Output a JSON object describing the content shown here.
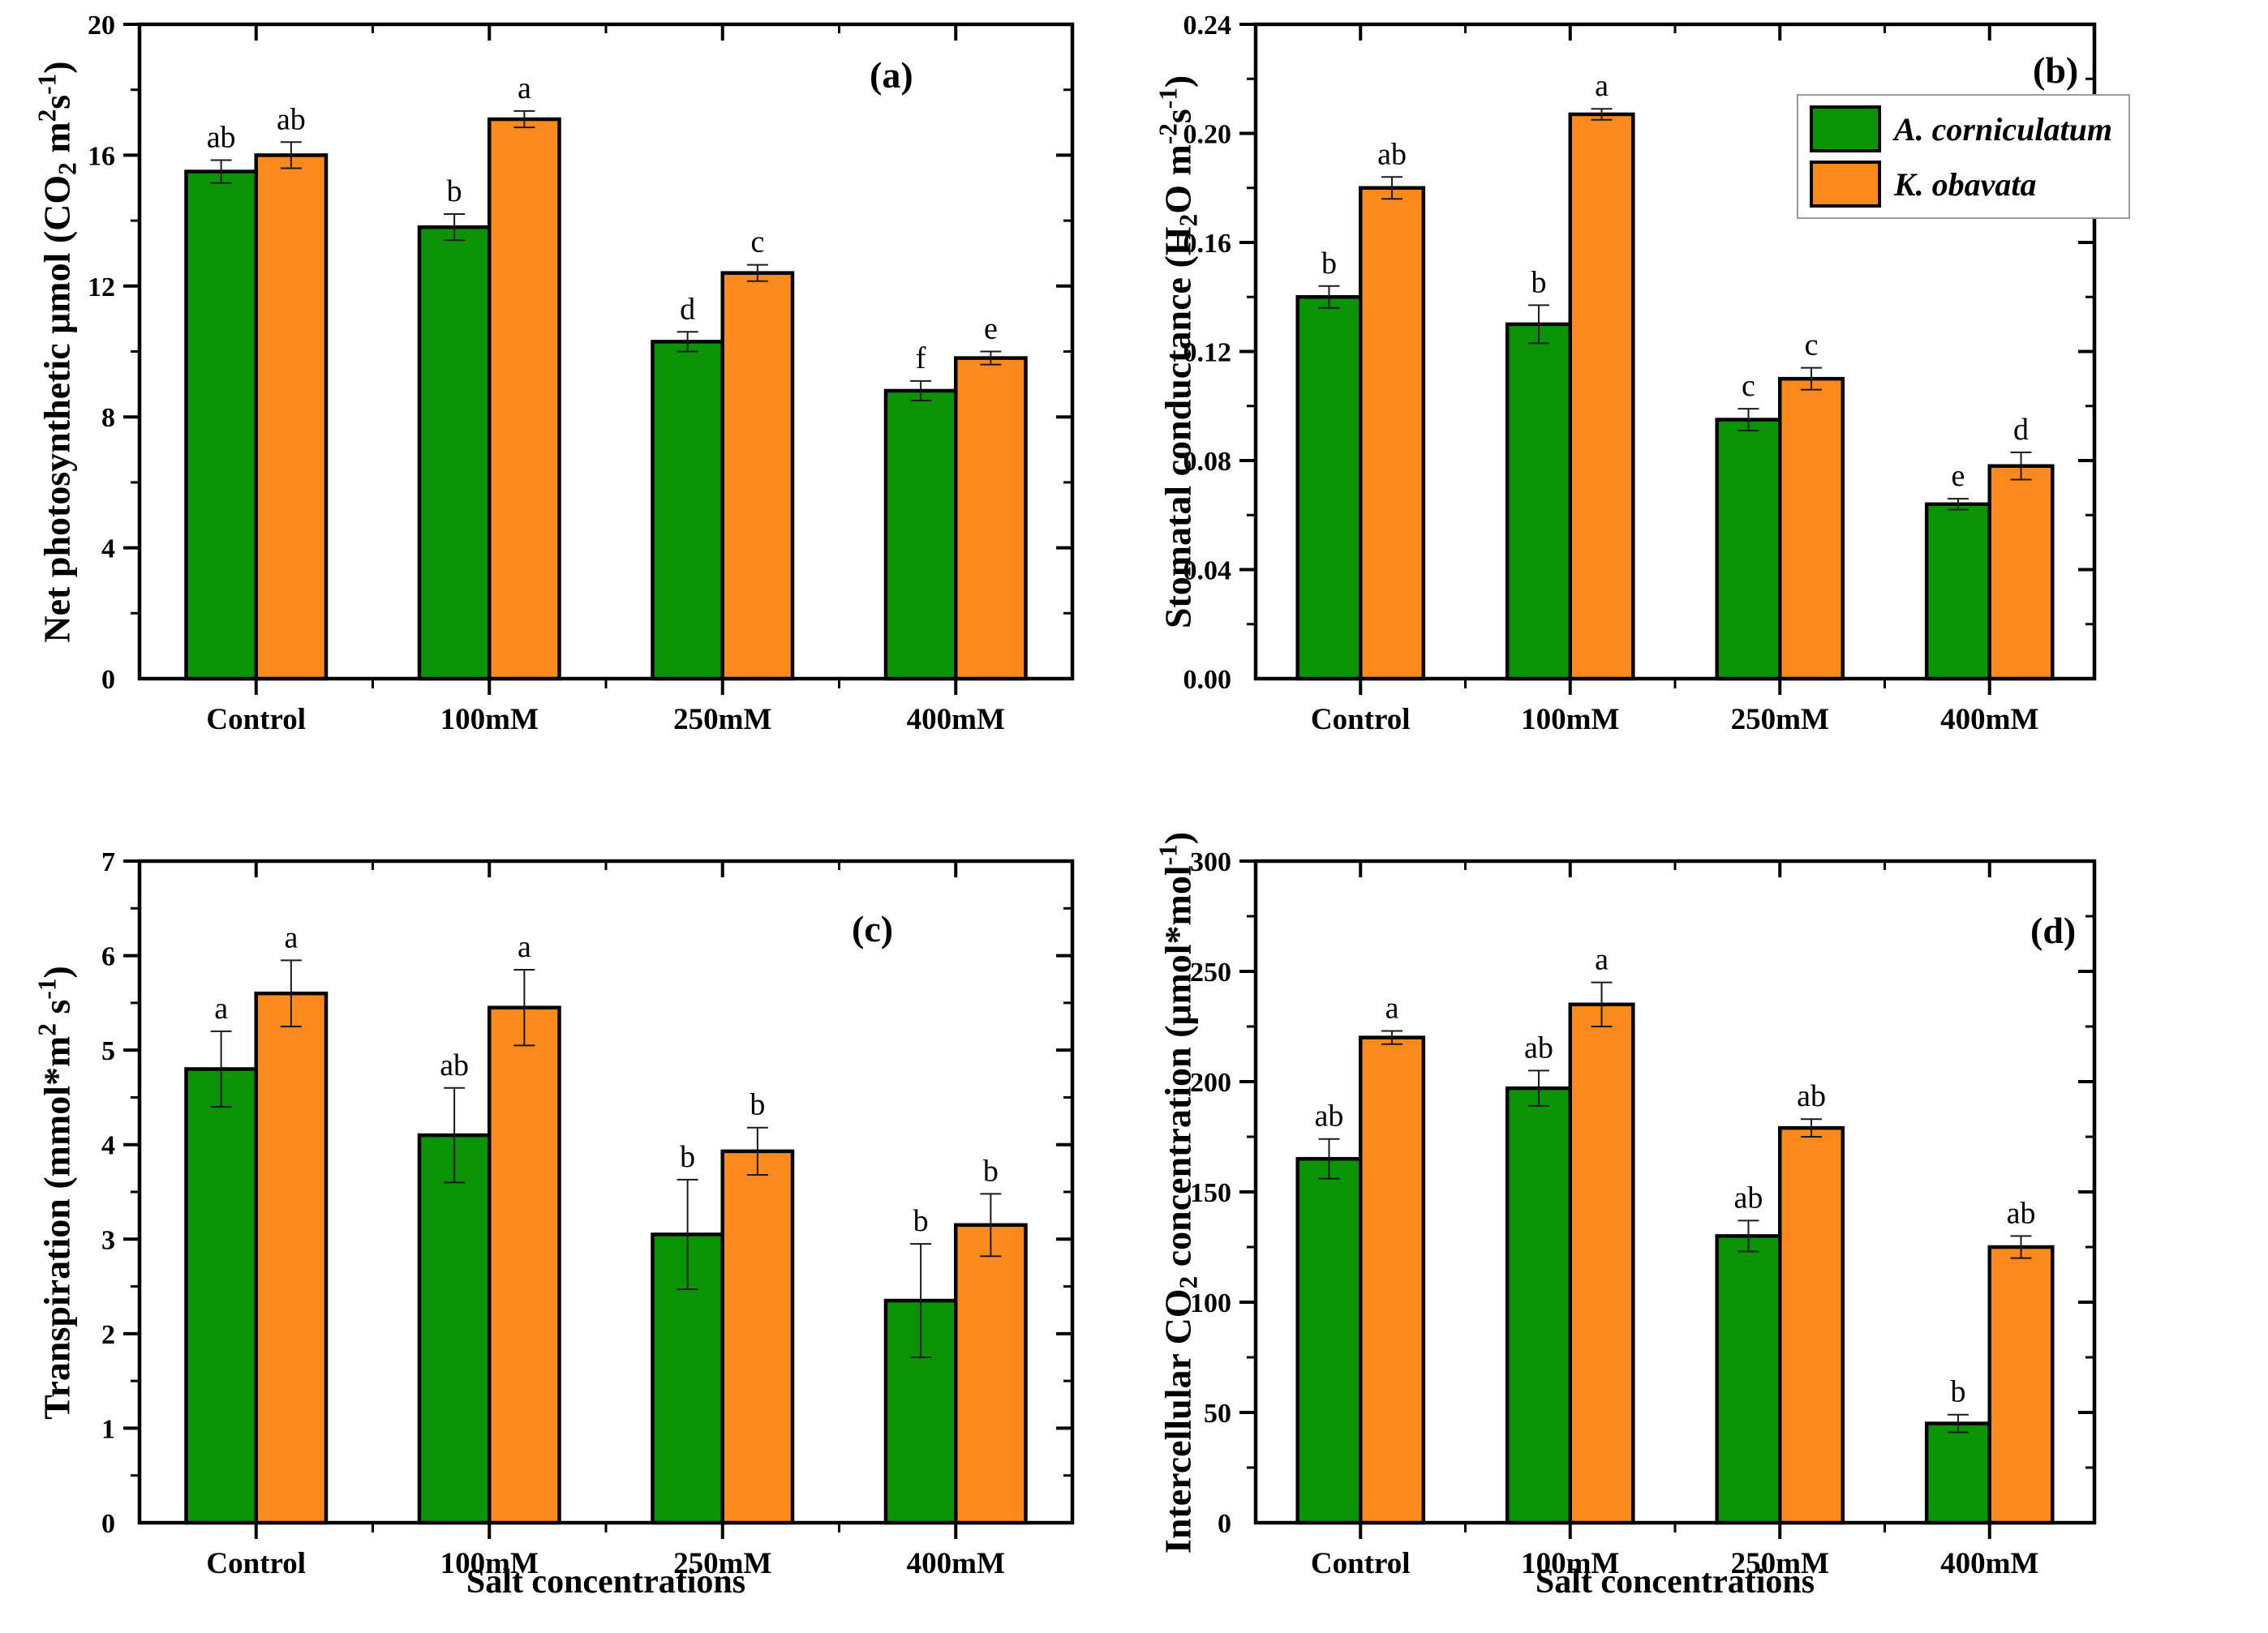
{
  "figure": {
    "background": "#ffffff",
    "xlabel": "Salt concentrations",
    "categories": [
      "Control",
      "100mM",
      "250mM",
      "400mM"
    ],
    "colors": {
      "green": "#0a9405",
      "orange": "#fc891c",
      "outline": "#000000"
    },
    "legend": {
      "position": "top-right-of-panel-b",
      "items": [
        {
          "label": "A. corniculatum",
          "color": "#0a9405"
        },
        {
          "label": "K. obavata",
          "color": "#fc891c"
        }
      ]
    }
  },
  "chart_data": [
    {
      "type": "bar",
      "tag": "(a)",
      "ylabel": "Net photosynthetic μmol (CO2 m2s-1)",
      "ylabel_parts": [
        [
          "Net photosynthetic μmol (CO",
          "n"
        ],
        [
          "2",
          "sub"
        ],
        [
          " m",
          "n"
        ],
        [
          "2",
          "sup"
        ],
        [
          "s",
          "n"
        ],
        [
          "-1",
          "sup"
        ],
        [
          ")",
          "n"
        ]
      ],
      "xlabel": "",
      "categories": [
        "Control",
        "100mM",
        "250mM",
        "400mM"
      ],
      "ylim": [
        0,
        20
      ],
      "ytick_step": 4,
      "yminor_step": 2,
      "ydecimals": 0,
      "grid": false,
      "legend_position": "none",
      "series": [
        {
          "name": "A. corniculatum",
          "color": "#0a9405",
          "values": [
            15.5,
            13.8,
            10.3,
            8.8
          ],
          "errors": [
            0.35,
            0.4,
            0.3,
            0.3
          ],
          "letters": [
            "ab",
            "b",
            "d",
            "f"
          ]
        },
        {
          "name": "K. obavata",
          "color": "#fc891c",
          "values": [
            16.0,
            17.1,
            12.4,
            9.8
          ],
          "errors": [
            0.4,
            0.25,
            0.25,
            0.2
          ],
          "letters": [
            "ab",
            "a",
            "c",
            "e"
          ]
        }
      ]
    },
    {
      "type": "bar",
      "tag": "(b)",
      "ylabel": "Stomatal conductance (H2O m-2s-1)",
      "ylabel_parts": [
        [
          "Stomatal conductance (H",
          "n"
        ],
        [
          "2",
          "sub"
        ],
        [
          "O m",
          "n"
        ],
        [
          "-2",
          "sup"
        ],
        [
          "s",
          "n"
        ],
        [
          "-1",
          "sup"
        ],
        [
          ")",
          "n"
        ]
      ],
      "xlabel": "",
      "categories": [
        "Control",
        "100mM",
        "250mM",
        "400mM"
      ],
      "ylim": [
        0,
        0.24
      ],
      "ytick_step": 0.04,
      "yminor_step": 0.02,
      "ydecimals": 2,
      "grid": false,
      "legend_position": "inside-top-right",
      "series": [
        {
          "name": "A. corniculatum",
          "color": "#0a9405",
          "values": [
            0.14,
            0.13,
            0.095,
            0.064
          ],
          "errors": [
            0.004,
            0.007,
            0.004,
            0.002
          ],
          "letters": [
            "b",
            "b",
            "c",
            "e"
          ]
        },
        {
          "name": "K. obavata",
          "color": "#fc891c",
          "values": [
            0.18,
            0.207,
            0.11,
            0.078
          ],
          "errors": [
            0.004,
            0.002,
            0.004,
            0.005
          ],
          "letters": [
            "ab",
            "a",
            "c",
            "d"
          ]
        }
      ]
    },
    {
      "type": "bar",
      "tag": "(c)",
      "ylabel": "Transpiration (mmol*m2 s-1)",
      "ylabel_parts": [
        [
          "Transpiration (mmol*m",
          "n"
        ],
        [
          "2",
          "sup"
        ],
        [
          " s",
          "n"
        ],
        [
          "-1",
          "sup"
        ],
        [
          ")",
          "n"
        ]
      ],
      "xlabel": "Salt concentrations",
      "categories": [
        "Control",
        "100mM",
        "250mM",
        "400mM"
      ],
      "ylim": [
        0,
        7
      ],
      "ytick_step": 1,
      "yminor_step": 0.5,
      "ydecimals": 0,
      "grid": false,
      "legend_position": "none",
      "series": [
        {
          "name": "A. corniculatum",
          "color": "#0a9405",
          "values": [
            4.8,
            4.1,
            3.05,
            2.35
          ],
          "errors": [
            0.4,
            0.5,
            0.58,
            0.6
          ],
          "letters": [
            "a",
            "ab",
            "b",
            "b"
          ]
        },
        {
          "name": "K. obavata",
          "color": "#fc891c",
          "values": [
            5.6,
            5.45,
            3.93,
            3.15
          ],
          "errors": [
            0.35,
            0.4,
            0.25,
            0.33
          ],
          "letters": [
            "a",
            "a",
            "b",
            "b"
          ]
        }
      ]
    },
    {
      "type": "bar",
      "tag": "(d)",
      "ylabel": "Intercellular CO2 concentration (μmol*mol-1)",
      "ylabel_parts": [
        [
          "Intercellular CO",
          "n"
        ],
        [
          "2",
          "sub"
        ],
        [
          " concentration (μmol*mol",
          "n"
        ],
        [
          "-1",
          "sup"
        ],
        [
          ")",
          "n"
        ]
      ],
      "xlabel": "Salt concentrations",
      "categories": [
        "Control",
        "100mM",
        "250mM",
        "400mM"
      ],
      "ylim": [
        0,
        300
      ],
      "ytick_step": 50,
      "yminor_step": 25,
      "ydecimals": 0,
      "grid": false,
      "legend_position": "none",
      "series": [
        {
          "name": "A. corniculatum",
          "color": "#0a9405",
          "values": [
            165,
            197,
            130,
            45
          ],
          "errors": [
            9,
            8,
            7,
            4
          ],
          "letters": [
            "ab",
            "ab",
            "ab",
            "b"
          ]
        },
        {
          "name": "K. obavata",
          "color": "#fc891c",
          "values": [
            220,
            235,
            179,
            125
          ],
          "errors": [
            3,
            10,
            4,
            5
          ],
          "letters": [
            "a",
            "a",
            "ab",
            "ab"
          ]
        }
      ]
    }
  ]
}
